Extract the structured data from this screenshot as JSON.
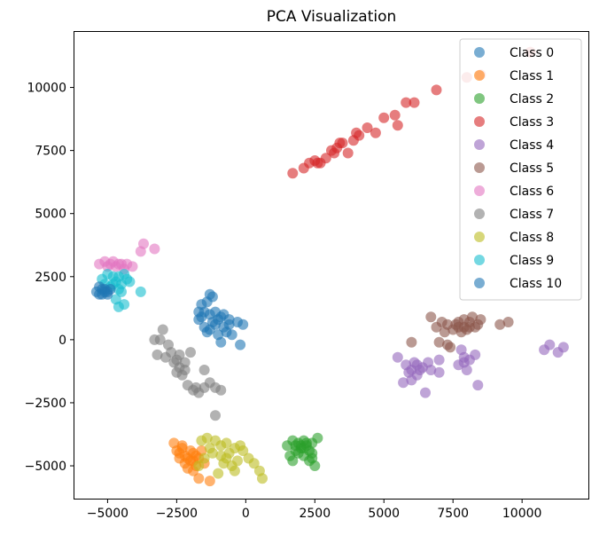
{
  "chart_data": {
    "type": "scatter",
    "title": "PCA Visualization",
    "xlabel": "",
    "ylabel": "",
    "xlim": [
      -6200,
      12400
    ],
    "ylim": [
      -6300,
      12200
    ],
    "xticks": [
      -5000,
      -2500,
      0,
      2500,
      5000,
      7500,
      10000
    ],
    "yticks": [
      -5000,
      -2500,
      0,
      2500,
      5000,
      7500,
      10000
    ],
    "xtick_labels": [
      "−5000",
      "−2500",
      "0",
      "2500",
      "5000",
      "7500",
      "10000"
    ],
    "ytick_labels": [
      "−5000",
      "−2500",
      "0",
      "2500",
      "5000",
      "7500",
      "10000"
    ],
    "legend_position": "upper right",
    "grid": false,
    "marker_alpha": 0.6,
    "series": [
      {
        "name": "Class 0",
        "color": "#1f77b4",
        "points": [
          [
            -1600,
            1400
          ],
          [
            -1300,
            1800
          ],
          [
            -1100,
            1100
          ],
          [
            -900,
            900
          ],
          [
            -1500,
            1100
          ],
          [
            -1200,
            700
          ],
          [
            -1700,
            800
          ],
          [
            -800,
            500
          ],
          [
            -1400,
            300
          ],
          [
            -1000,
            200
          ],
          [
            -600,
            800
          ],
          [
            -500,
            200
          ],
          [
            -900,
            -100
          ],
          [
            -300,
            700
          ],
          [
            -100,
            600
          ],
          [
            -1100,
            600
          ],
          [
            -1300,
            1000
          ],
          [
            -1600,
            900
          ],
          [
            -1400,
            1500
          ],
          [
            -700,
            300
          ],
          [
            -1200,
            1700
          ],
          [
            -1000,
            800
          ],
          [
            -800,
            1000
          ],
          [
            -1500,
            500
          ],
          [
            -1300,
            400
          ],
          [
            -200,
            -200
          ],
          [
            -600,
            600
          ],
          [
            -1700,
            1100
          ]
        ]
      },
      {
        "name": "Class 1",
        "color": "#ff7f0e",
        "points": [
          [
            -2600,
            -4100
          ],
          [
            -2500,
            -4400
          ],
          [
            -2300,
            -4300
          ],
          [
            -2200,
            -4600
          ],
          [
            -2000,
            -4800
          ],
          [
            -2400,
            -4700
          ],
          [
            -1900,
            -4500
          ],
          [
            -1800,
            -5000
          ],
          [
            -2100,
            -5100
          ],
          [
            -1700,
            -4700
          ],
          [
            -1900,
            -5200
          ],
          [
            -1700,
            -5500
          ],
          [
            -1300,
            -5600
          ],
          [
            -2000,
            -4400
          ],
          [
            -2200,
            -4900
          ],
          [
            -1600,
            -4400
          ],
          [
            -2400,
            -4500
          ],
          [
            -1800,
            -4600
          ],
          [
            -2100,
            -4700
          ],
          [
            -1500,
            -4900
          ],
          [
            -2300,
            -4200
          ],
          [
            -1900,
            -4800
          ]
        ]
      },
      {
        "name": "Class 2",
        "color": "#2ca02c",
        "points": [
          [
            1500,
            -4200
          ],
          [
            1700,
            -4000
          ],
          [
            1900,
            -4100
          ],
          [
            2100,
            -4000
          ],
          [
            2200,
            -4200
          ],
          [
            2400,
            -4100
          ],
          [
            1800,
            -4400
          ],
          [
            2000,
            -4300
          ],
          [
            2300,
            -4400
          ],
          [
            1600,
            -4600
          ],
          [
            2100,
            -4600
          ],
          [
            2400,
            -4700
          ],
          [
            2500,
            -5000
          ],
          [
            2600,
            -3900
          ],
          [
            1700,
            -4800
          ],
          [
            2000,
            -4200
          ],
          [
            2200,
            -4100
          ],
          [
            1900,
            -4500
          ],
          [
            2300,
            -4800
          ],
          [
            1800,
            -4200
          ],
          [
            2100,
            -4300
          ],
          [
            2400,
            -4500
          ]
        ]
      },
      {
        "name": "Class 3",
        "color": "#d62728",
        "points": [
          [
            1700,
            6600
          ],
          [
            2100,
            6800
          ],
          [
            2300,
            7000
          ],
          [
            2500,
            7100
          ],
          [
            2700,
            7000
          ],
          [
            2900,
            7200
          ],
          [
            3100,
            7500
          ],
          [
            3300,
            7600
          ],
          [
            3500,
            7800
          ],
          [
            3700,
            7400
          ],
          [
            3900,
            7900
          ],
          [
            4100,
            8100
          ],
          [
            4400,
            8400
          ],
          [
            4700,
            8200
          ],
          [
            5000,
            8800
          ],
          [
            5400,
            8900
          ],
          [
            5500,
            8500
          ],
          [
            5800,
            9400
          ],
          [
            6100,
            9400
          ],
          [
            6900,
            9900
          ],
          [
            8000,
            10400
          ],
          [
            8500,
            10500
          ],
          [
            10300,
            11400
          ],
          [
            2600,
            7000
          ],
          [
            3400,
            7800
          ],
          [
            4000,
            8200
          ],
          [
            3200,
            7400
          ]
        ]
      },
      {
        "name": "Class 4",
        "color": "#9467bd",
        "points": [
          [
            5500,
            -700
          ],
          [
            5800,
            -1000
          ],
          [
            6000,
            -1200
          ],
          [
            6200,
            -1000
          ],
          [
            6400,
            -1100
          ],
          [
            6600,
            -900
          ],
          [
            6200,
            -1400
          ],
          [
            6000,
            -1600
          ],
          [
            5700,
            -1700
          ],
          [
            6500,
            -2100
          ],
          [
            7000,
            -1300
          ],
          [
            7000,
            -800
          ],
          [
            7700,
            -1000
          ],
          [
            7900,
            -700
          ],
          [
            8100,
            -800
          ],
          [
            8000,
            -1200
          ],
          [
            7800,
            -400
          ],
          [
            8300,
            -600
          ],
          [
            8400,
            -1800
          ],
          [
            10800,
            -400
          ],
          [
            11000,
            -200
          ],
          [
            11300,
            -500
          ],
          [
            11500,
            -300
          ],
          [
            6300,
            -1200
          ],
          [
            5900,
            -1300
          ],
          [
            6100,
            -900
          ],
          [
            6700,
            -1200
          ],
          [
            7900,
            -900
          ]
        ]
      },
      {
        "name": "Class 5",
        "color": "#8c564b",
        "points": [
          [
            6000,
            -100
          ],
          [
            6700,
            900
          ],
          [
            6900,
            500
          ],
          [
            7000,
            -100
          ],
          [
            7200,
            300
          ],
          [
            7300,
            600
          ],
          [
            7500,
            400
          ],
          [
            7700,
            700
          ],
          [
            7900,
            500
          ],
          [
            8100,
            700
          ],
          [
            8200,
            900
          ],
          [
            8300,
            500
          ],
          [
            8500,
            800
          ],
          [
            9200,
            600
          ],
          [
            9500,
            700
          ],
          [
            7400,
            -300
          ],
          [
            7800,
            300
          ],
          [
            7600,
            600
          ],
          [
            8000,
            400
          ],
          [
            8400,
            600
          ],
          [
            7100,
            700
          ],
          [
            7900,
            800
          ],
          [
            8100,
            500
          ],
          [
            7700,
            500
          ],
          [
            7300,
            -200
          ]
        ]
      },
      {
        "name": "Class 6",
        "color": "#e377c2",
        "points": [
          [
            -5300,
            3000
          ],
          [
            -5100,
            3100
          ],
          [
            -4900,
            3000
          ],
          [
            -4700,
            2900
          ],
          [
            -4500,
            3000
          ],
          [
            -4300,
            3000
          ],
          [
            -4100,
            2900
          ],
          [
            -3800,
            3500
          ],
          [
            -3700,
            3800
          ],
          [
            -3300,
            3600
          ],
          [
            -4400,
            2800
          ],
          [
            -5000,
            2900
          ],
          [
            -4800,
            3100
          ],
          [
            -4600,
            3000
          ]
        ]
      },
      {
        "name": "Class 7",
        "color": "#7f7f7f",
        "points": [
          [
            -3300,
            0
          ],
          [
            -3100,
            0
          ],
          [
            -3000,
            400
          ],
          [
            -2800,
            -200
          ],
          [
            -2700,
            -500
          ],
          [
            -2500,
            -800
          ],
          [
            -2400,
            -1100
          ],
          [
            -2200,
            -900
          ],
          [
            -2300,
            -1400
          ],
          [
            -2100,
            -1800
          ],
          [
            -1900,
            -2000
          ],
          [
            -1700,
            -2100
          ],
          [
            -1500,
            -1900
          ],
          [
            -1300,
            -1700
          ],
          [
            -1100,
            -1900
          ],
          [
            -900,
            -2000
          ],
          [
            -1500,
            -1200
          ],
          [
            -1100,
            -3000
          ],
          [
            -2000,
            -500
          ],
          [
            -3200,
            -600
          ],
          [
            -2900,
            -700
          ],
          [
            -2600,
            -900
          ],
          [
            -2400,
            -600
          ],
          [
            -2200,
            -1200
          ],
          [
            -1800,
            -1900
          ],
          [
            -2500,
            -1300
          ]
        ]
      },
      {
        "name": "Class 8",
        "color": "#bcbd22",
        "points": [
          [
            -1600,
            -4000
          ],
          [
            -1400,
            -3900
          ],
          [
            -1100,
            -4000
          ],
          [
            -900,
            -4200
          ],
          [
            -700,
            -4100
          ],
          [
            -400,
            -4300
          ],
          [
            -200,
            -4200
          ],
          [
            -600,
            -4500
          ],
          [
            -900,
            -4600
          ],
          [
            -1200,
            -4500
          ],
          [
            -1500,
            -4700
          ],
          [
            -1700,
            -5000
          ],
          [
            -800,
            -4900
          ],
          [
            -500,
            -5000
          ],
          [
            -300,
            -4800
          ],
          [
            100,
            -4700
          ],
          [
            300,
            -4900
          ],
          [
            500,
            -5200
          ],
          [
            600,
            -5500
          ],
          [
            -400,
            -5200
          ],
          [
            -1300,
            -4300
          ],
          [
            -1000,
            -5300
          ],
          [
            -700,
            -4700
          ],
          [
            -100,
            -4400
          ]
        ]
      },
      {
        "name": "Class 9",
        "color": "#17becf",
        "points": [
          [
            -5200,
            2400
          ],
          [
            -5000,
            2600
          ],
          [
            -4800,
            2500
          ],
          [
            -4700,
            2300
          ],
          [
            -4500,
            2200
          ],
          [
            -4400,
            2600
          ],
          [
            -4300,
            2400
          ],
          [
            -4600,
            2000
          ],
          [
            -4900,
            2100
          ],
          [
            -4500,
            1900
          ],
          [
            -4700,
            1600
          ],
          [
            -4400,
            1400
          ],
          [
            -4600,
            1300
          ],
          [
            -3800,
            1900
          ],
          [
            -4200,
            2300
          ],
          [
            -5100,
            2200
          ],
          [
            -4800,
            2200
          ],
          [
            -4600,
            2500
          ]
        ]
      },
      {
        "name": "Class 10",
        "color": "#1f77b4",
        "points": [
          [
            -5400,
            1900
          ],
          [
            -5300,
            2100
          ],
          [
            -5200,
            1800
          ],
          [
            -5100,
            2000
          ],
          [
            -5000,
            1900
          ],
          [
            -4900,
            2000
          ],
          [
            -5300,
            1800
          ],
          [
            -5200,
            2000
          ],
          [
            -5000,
            1800
          ],
          [
            -5100,
            1900
          ]
        ]
      }
    ]
  }
}
